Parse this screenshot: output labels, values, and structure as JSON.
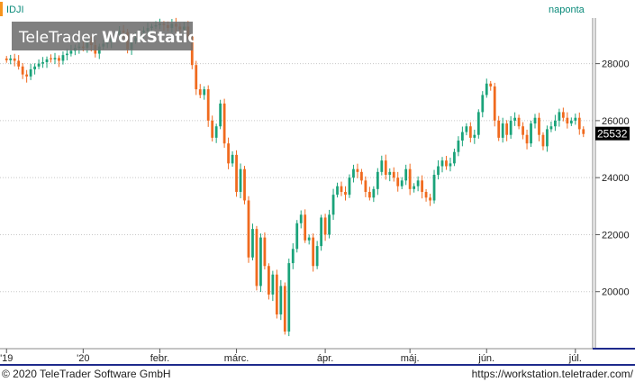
{
  "header": {
    "symbol": "IDJI",
    "interval": "naponta",
    "watermark_light": "TeleTrader ",
    "watermark_bold": "WorkStation"
  },
  "footer": {
    "copyright": "© 2020 TeleTrader Software GmbH",
    "url": "https://workstation.teletrader.com/"
  },
  "colors": {
    "up": "#1aa37a",
    "down": "#f06a1e",
    "accent": "#0a8a7a",
    "axis": "#1e2a8c",
    "last_price_bg": "#000000",
    "marker": "#f7941d"
  },
  "chart_data": {
    "type": "candlestick",
    "title": "",
    "xlabel": "",
    "ylabel": "",
    "ylim": [
      18000,
      29600
    ],
    "y_ticks": [
      20000,
      22000,
      24000,
      26000,
      28000
    ],
    "x_tick_labels": [
      "'19",
      "'20",
      "febr.",
      "márc.",
      "ápr.",
      "máj.",
      "jún.",
      "júl."
    ],
    "x_ticks": [
      {
        "label": "'19",
        "index": 0
      },
      {
        "label": "'20",
        "index": 19
      },
      {
        "label": "febr.",
        "index": 38
      },
      {
        "label": "márc.",
        "index": 57
      },
      {
        "label": "ápr.",
        "index": 79
      },
      {
        "label": "máj.",
        "index": 100
      },
      {
        "label": "jún.",
        "index": 119
      },
      {
        "label": "júl.",
        "index": 141
      }
    ],
    "last_price": 25532,
    "grid": "horizontal dotted",
    "series": [
      {
        "values": [
          28120,
          28180,
          28100,
          27900,
          27620,
          27550,
          27800,
          27900,
          28000,
          28050,
          28150,
          28150,
          28200,
          28100,
          28300,
          28350,
          28450,
          28550,
          28600,
          28550,
          28800,
          28650,
          28350,
          28600,
          28700,
          28750,
          28900,
          29000,
          29150,
          29100,
          28500,
          28800,
          28900,
          29100,
          29150,
          29250,
          29300,
          29350,
          29400,
          29350,
          29250,
          29400,
          29300,
          29200,
          29300,
          28950,
          27950,
          27100,
          26900,
          27100,
          26000,
          25400,
          25800,
          26600,
          25200,
          24500,
          24800,
          23500,
          24300,
          23200,
          21200,
          22200,
          20200,
          21900,
          20900,
          19900,
          20600,
          19200,
          20200,
          18600,
          21000,
          21500,
          22400,
          22700,
          21800,
          21900,
          20900,
          21600,
          22600,
          22000,
          22700,
          23400,
          23700,
          23500,
          23400,
          24000,
          24300,
          24200,
          23900,
          23500,
          23300,
          23600,
          24200,
          24600,
          24100,
          24200,
          24000,
          23700,
          23900,
          24300,
          23600,
          23700,
          23900,
          23500,
          23300,
          23200,
          24100,
          24400,
          24600,
          24400,
          24500,
          24900,
          25300,
          25600,
          25800,
          25400,
          25500,
          26300,
          26900,
          27300,
          27200,
          26000,
          25400,
          25900,
          25500,
          26000,
          26100,
          25800,
          25500,
          25200,
          25900,
          26100,
          25500,
          25100,
          25700,
          25800,
          26000,
          26300,
          26100,
          25900,
          26000,
          26100,
          25700,
          25532
        ]
      }
    ]
  }
}
